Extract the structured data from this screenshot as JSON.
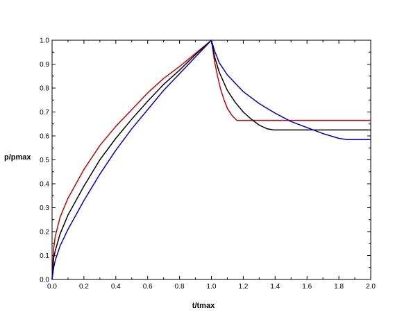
{
  "chart_data": {
    "type": "line",
    "xlabel": "t/tmax",
    "ylabel": "p/pmax",
    "xlim": [
      0,
      2
    ],
    "ylim": [
      0,
      1
    ],
    "x_ticks": [
      "0.0",
      "0.2",
      "0.4",
      "0.6",
      "0.8",
      "1.0",
      "1.2",
      "1.4",
      "1.6",
      "1.8",
      "2.0"
    ],
    "y_ticks": [
      "0.0",
      "0.1",
      "0.2",
      "0.3",
      "0.4",
      "0.5",
      "0.6",
      "0.7",
      "0.8",
      "0.9",
      "1.0"
    ],
    "grid": false,
    "series": [
      {
        "color": "#cc0000",
        "x": [
          0,
          0.01,
          0.02,
          0.05,
          0.1,
          0.2,
          0.3,
          0.4,
          0.5,
          0.6,
          0.7,
          0.8,
          0.9,
          1.0,
          1.02,
          1.04,
          1.06,
          1.08,
          1.1,
          1.13,
          1.16,
          1.3,
          1.5,
          1.7,
          1.9,
          2.0
        ],
        "y": [
          0,
          0.13,
          0.18,
          0.26,
          0.34,
          0.46,
          0.56,
          0.64,
          0.71,
          0.78,
          0.84,
          0.89,
          0.945,
          1.0,
          0.91,
          0.845,
          0.79,
          0.75,
          0.715,
          0.685,
          0.665,
          0.665,
          0.665,
          0.665,
          0.665,
          0.665
        ]
      },
      {
        "color": "#000000",
        "x": [
          0,
          0.01,
          0.02,
          0.05,
          0.1,
          0.2,
          0.3,
          0.4,
          0.5,
          0.6,
          0.7,
          0.8,
          0.9,
          1.0,
          1.02,
          1.05,
          1.1,
          1.15,
          1.2,
          1.25,
          1.3,
          1.35,
          1.39,
          1.5,
          1.7,
          1.9,
          2.0
        ],
        "y": [
          0,
          0.09,
          0.12,
          0.19,
          0.27,
          0.39,
          0.5,
          0.59,
          0.67,
          0.745,
          0.815,
          0.875,
          0.94,
          1.0,
          0.93,
          0.865,
          0.79,
          0.74,
          0.7,
          0.67,
          0.645,
          0.63,
          0.625,
          0.625,
          0.625,
          0.625,
          0.625
        ]
      },
      {
        "color": "#0000cc",
        "x": [
          0,
          0.01,
          0.02,
          0.05,
          0.1,
          0.2,
          0.3,
          0.4,
          0.5,
          0.6,
          0.7,
          0.8,
          0.9,
          1.0,
          1.02,
          1.05,
          1.1,
          1.2,
          1.3,
          1.4,
          1.5,
          1.6,
          1.7,
          1.8,
          1.85,
          1.9,
          2.0
        ],
        "y": [
          0,
          0.05,
          0.08,
          0.14,
          0.21,
          0.33,
          0.44,
          0.54,
          0.63,
          0.71,
          0.79,
          0.86,
          0.93,
          1.0,
          0.955,
          0.905,
          0.855,
          0.785,
          0.735,
          0.695,
          0.66,
          0.635,
          0.61,
          0.59,
          0.585,
          0.585,
          0.585
        ]
      }
    ]
  }
}
